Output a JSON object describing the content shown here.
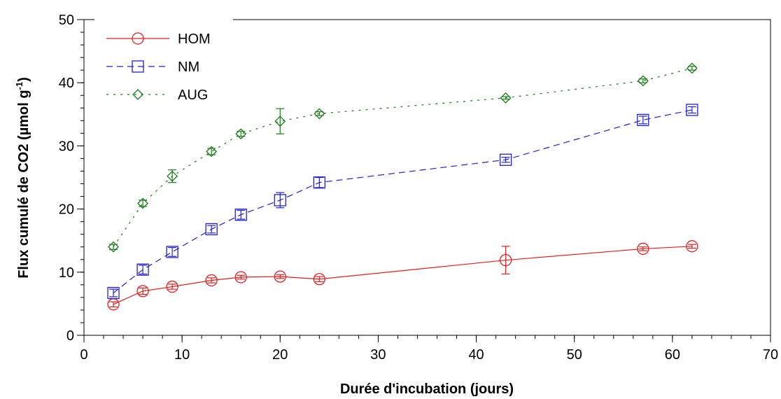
{
  "chart_data": {
    "type": "line",
    "xlabel": "Durée d'incubation (jours)",
    "ylabel_main": "Flux cumulé de CO2 (µmol g",
    "ylabel_sup": "-1",
    "ylabel_end": ")",
    "xlim": [
      0,
      70
    ],
    "ylim": [
      0,
      50
    ],
    "x_ticks": [
      0,
      10,
      20,
      30,
      40,
      50,
      60,
      70
    ],
    "y_ticks": [
      0,
      10,
      20,
      30,
      40,
      50
    ],
    "x_minor_step": 2,
    "y_minor_step": 2,
    "grid": false,
    "legend_position": "top-left",
    "series": [
      {
        "name": "HOM",
        "color": "#e02020",
        "marker": "circle",
        "line_style": "solid",
        "x": [
          3,
          6,
          9,
          13,
          16,
          20,
          24,
          43,
          57,
          62
        ],
        "y": [
          4.9,
          7.0,
          7.7,
          8.7,
          9.2,
          9.3,
          8.9,
          11.9,
          13.7,
          14.1
        ],
        "err": [
          0.4,
          0.5,
          0.4,
          0.4,
          0.3,
          0.3,
          0.4,
          2.2,
          0.3,
          0.3
        ]
      },
      {
        "name": "NM",
        "color": "#2020d0",
        "marker": "square",
        "line_style": "dashed",
        "x": [
          3,
          6,
          9,
          13,
          16,
          20,
          24,
          43,
          57,
          62
        ],
        "y": [
          6.7,
          10.4,
          13.2,
          16.8,
          19.1,
          21.4,
          24.2,
          27.8,
          34.1,
          35.7
        ],
        "err": [
          0.6,
          0.7,
          0.7,
          0.6,
          0.7,
          1.2,
          0.8,
          0.4,
          0.6,
          0.5
        ]
      },
      {
        "name": "AUG",
        "color": "#1a7a1a",
        "marker": "diamond",
        "line_style": "dotted",
        "x": [
          3,
          6,
          9,
          13,
          16,
          20,
          24,
          43,
          57,
          62
        ],
        "y": [
          14.0,
          20.9,
          25.2,
          29.1,
          31.9,
          33.9,
          35.1,
          37.6,
          40.3,
          42.3
        ],
        "err": [
          0.4,
          0.5,
          1.0,
          0.5,
          0.4,
          2.0,
          0.3,
          0.2,
          0.3,
          0.3
        ]
      }
    ]
  }
}
